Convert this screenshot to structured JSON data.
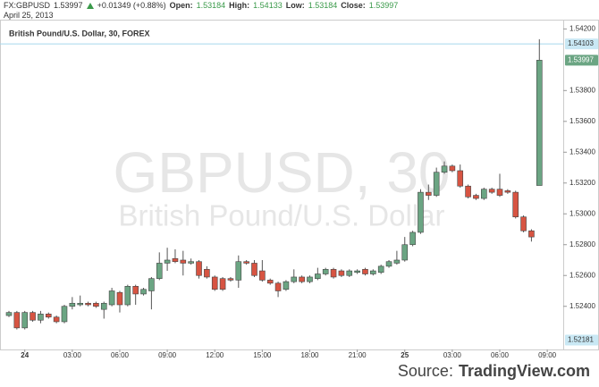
{
  "chart_data": {
    "type": "candlestick",
    "symbol": "FX:GBPUSD",
    "change": "+0.01349 (+0.88%)",
    "ohlc_labels": [
      "Open:",
      "High:",
      "Low:",
      "Close:"
    ],
    "date": "April 25, 2013",
    "chart_label": "British Pound/U.S. Dollar, 30, FOREX",
    "watermark": [
      "GBPUSD, 30",
      "British Pound/U.S. Dollar"
    ],
    "source": [
      "Source:",
      "TradingView.com"
    ],
    "up_color": "#6ba583",
    "down_color": "#d75442",
    "price_line": 1.54103,
    "axis_low": 1.52181,
    "categories": [
      null,
      null,
      "24",
      null,
      null,
      null,
      null,
      null,
      "03:00",
      null,
      null,
      null,
      null,
      null,
      "06:00",
      null,
      null,
      null,
      null,
      null,
      "09:00",
      null,
      null,
      null,
      null,
      null,
      "12:00",
      null,
      null,
      null,
      null,
      null,
      "15:00",
      null,
      null,
      null,
      null,
      null,
      "18:00",
      null,
      null,
      null,
      null,
      null,
      "21:00",
      null,
      null,
      null,
      null,
      null,
      "25",
      null,
      null,
      null,
      null,
      null,
      "03:00",
      null,
      null,
      null,
      null,
      null,
      "06:00",
      null,
      null,
      null,
      null,
      null,
      "09:00"
    ],
    "open": [
      1.5234,
      1.5236,
      1.5226,
      1.5236,
      1.5231,
      1.5235,
      1.5233,
      1.523,
      1.524,
      1.5241,
      1.5242,
      1.5242,
      1.5238,
      1.5241,
      1.5249,
      1.5241,
      1.5253,
      1.5248,
      1.525,
      1.5258,
      1.5268,
      1.5271,
      1.527,
      1.5268,
      1.5269,
      1.5264,
      1.5259,
      1.5258,
      1.5258,
      1.5257,
      1.5269,
      1.5268,
      1.5263,
      1.5257,
      1.5255,
      1.5251,
      1.5256,
      1.5259,
      1.5256,
      1.5258,
      1.5261,
      1.5264,
      1.5263,
      1.526,
      1.5262,
      1.5264,
      1.5261,
      1.5262,
      1.5266,
      1.5268,
      1.527,
      1.528,
      1.5288,
      1.5314,
      1.5312,
      1.5327,
      1.5331,
      1.5328,
      1.5318,
      1.5312,
      1.531,
      1.5316,
      1.5316,
      1.5315,
      1.5314,
      1.5298,
      1.5289,
      1.53184,
      null
    ],
    "high": [
      1.5237,
      1.5237,
      1.5237,
      1.5237,
      1.5237,
      1.5236,
      1.5234,
      1.5241,
      1.5246,
      1.5247,
      1.5243,
      1.5243,
      1.5243,
      1.5252,
      1.525,
      1.5254,
      1.5254,
      1.5252,
      1.5259,
      1.5275,
      1.5278,
      1.5277,
      1.5276,
      1.5271,
      1.527,
      1.5266,
      1.526,
      1.5259,
      1.5259,
      1.5273,
      1.527,
      1.527,
      1.527,
      1.5258,
      1.5256,
      1.5257,
      1.5264,
      1.526,
      1.526,
      1.5265,
      1.5265,
      1.5265,
      1.5264,
      1.5264,
      1.5264,
      1.5265,
      1.5264,
      1.5267,
      1.527,
      1.5276,
      1.5285,
      1.5289,
      1.5316,
      1.5319,
      1.533,
      1.5334,
      1.5332,
      1.5332,
      1.5319,
      1.5313,
      1.5317,
      1.5317,
      1.5326,
      1.5316,
      1.5315,
      1.5299,
      1.529,
      1.54133,
      null
    ],
    "low": [
      1.5233,
      1.5225,
      1.5225,
      1.523,
      1.5229,
      1.5232,
      1.5229,
      1.5229,
      1.5238,
      1.524,
      1.524,
      1.5239,
      1.5232,
      1.524,
      1.5236,
      1.524,
      1.5241,
      1.5247,
      1.5238,
      1.5257,
      1.5263,
      1.5268,
      1.526,
      1.5267,
      1.5258,
      1.5258,
      1.525,
      1.525,
      1.5256,
      1.5252,
      1.5267,
      1.5259,
      1.5256,
      1.5254,
      1.5246,
      1.525,
      1.5255,
      1.5255,
      1.5255,
      1.5257,
      1.526,
      1.5258,
      1.5259,
      1.5259,
      1.5261,
      1.526,
      1.526,
      1.5261,
      1.5265,
      1.5267,
      1.5269,
      1.5279,
      1.5287,
      1.5309,
      1.5311,
      1.5326,
      1.5327,
      1.5317,
      1.531,
      1.5309,
      1.5309,
      1.5313,
      1.5311,
      1.5313,
      1.5297,
      1.5288,
      1.5282,
      1.53184,
      null
    ],
    "close": [
      1.5236,
      1.5226,
      1.5236,
      1.5231,
      1.5235,
      1.5233,
      1.523,
      1.524,
      1.5242,
      1.5242,
      1.5241,
      1.524,
      1.5242,
      1.525,
      1.5241,
      1.5253,
      1.5248,
      1.5251,
      1.5258,
      1.5268,
      1.527,
      1.5269,
      1.5268,
      1.5269,
      1.526,
      1.5259,
      1.5251,
      1.5251,
      1.5257,
      1.5269,
      1.5268,
      1.526,
      1.5257,
      1.5255,
      1.525,
      1.5256,
      1.5259,
      1.5256,
      1.5259,
      1.5261,
      1.5264,
      1.5259,
      1.526,
      1.5263,
      1.5263,
      1.5261,
      1.5263,
      1.5266,
      1.5269,
      1.527,
      1.528,
      1.5288,
      1.5314,
      1.5312,
      1.5327,
      1.5331,
      1.5328,
      1.5318,
      1.5311,
      1.531,
      1.5316,
      1.5314,
      1.5312,
      1.5314,
      1.5298,
      1.5289,
      1.5285,
      1.53997,
      null
    ],
    "ylim": [
      1.5212,
      1.5426
    ],
    "yticks": [
      {
        "value": 1.524,
        "label": "1.52400"
      },
      {
        "value": 1.526,
        "label": "1.52600"
      },
      {
        "value": 1.528,
        "label": "1.52800"
      },
      {
        "value": 1.53,
        "label": "1.53000"
      },
      {
        "value": 1.532,
        "label": "1.53200"
      },
      {
        "value": 1.534,
        "label": "1.53400"
      },
      {
        "value": 1.536,
        "label": "1.53600"
      },
      {
        "value": 1.538,
        "label": "1.53800"
      },
      {
        "value": 1.542,
        "label": "1.54200"
      }
    ],
    "grid": false
  }
}
